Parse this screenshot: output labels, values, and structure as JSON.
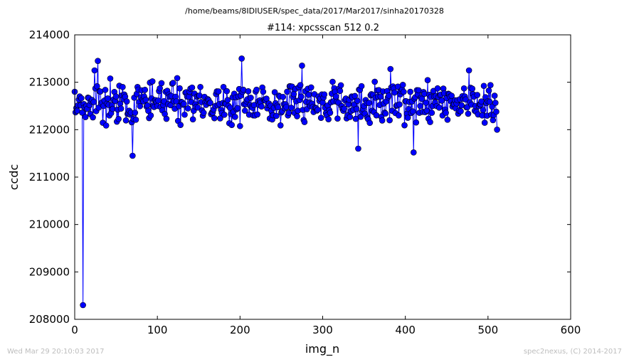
{
  "figure": {
    "suptitle": "/home/beams/8IDIUSER/spec_data/2017/Mar2017/sinha20170328",
    "footer_left": "Wed Mar 29 20:10:03 2017",
    "footer_right": "spec2nexus, (C) 2014-2017"
  },
  "chart_data": {
    "type": "line",
    "title": "#114: xpcsscan 512 0.2",
    "xlabel": "img_n",
    "ylabel": "ccdc",
    "xlim": [
      0,
      600
    ],
    "ylim": [
      208000,
      214000
    ],
    "xticks": [
      "0",
      "100",
      "200",
      "300",
      "400",
      "500",
      "600"
    ],
    "yticks": [
      "208000",
      "209000",
      "210000",
      "211000",
      "212000",
      "213000",
      "214000"
    ],
    "grid": false,
    "series_color": "#0000ff",
    "marker": "circle",
    "n_points": 512,
    "notable_points": [
      {
        "x": 10,
        "y": 208300
      },
      {
        "x": 70,
        "y": 211450
      },
      {
        "x": 202,
        "y": 213500
      },
      {
        "x": 410,
        "y": 211520
      },
      {
        "x": 477,
        "y": 213250
      }
    ],
    "series": [
      {
        "x": [
          0,
          3,
          6,
          10,
          14,
          20,
          24,
          28,
          35,
          42,
          50,
          58,
          66,
          70,
          76,
          84,
          92,
          100,
          110,
          120,
          128,
          136,
          144,
          152,
          160,
          170,
          180,
          190,
          198,
          202,
          208,
          218,
          228,
          238,
          248,
          258,
          268,
          275,
          285,
          295,
          305,
          315,
          325,
          335,
          343,
          350,
          360,
          370,
          382,
          392,
          400,
          410,
          418,
          426,
          435,
          445,
          455,
          465,
          472,
          477,
          485,
          493,
          500,
          506,
          511
        ],
        "y": [
          212800,
          212400,
          212700,
          208300,
          212500,
          212600,
          213250,
          213450,
          212500,
          212300,
          212700,
          212900,
          212400,
          211450,
          212900,
          212700,
          212300,
          212500,
          212800,
          212600,
          212100,
          212700,
          212400,
          212900,
          212600,
          212500,
          212900,
          212100,
          212700,
          213500,
          212600,
          212300,
          212800,
          212400,
          212700,
          212300,
          212600,
          213350,
          212500,
          212700,
          212300,
          212800,
          212400,
          212700,
          211600,
          212500,
          212400,
          212700,
          213280,
          212300,
          212600,
          211520,
          212500,
          212400,
          212700,
          212300,
          212600,
          212400,
          212700,
          213250,
          212500,
          212300,
          212600,
          212200,
          212000
        ]
      }
    ]
  }
}
